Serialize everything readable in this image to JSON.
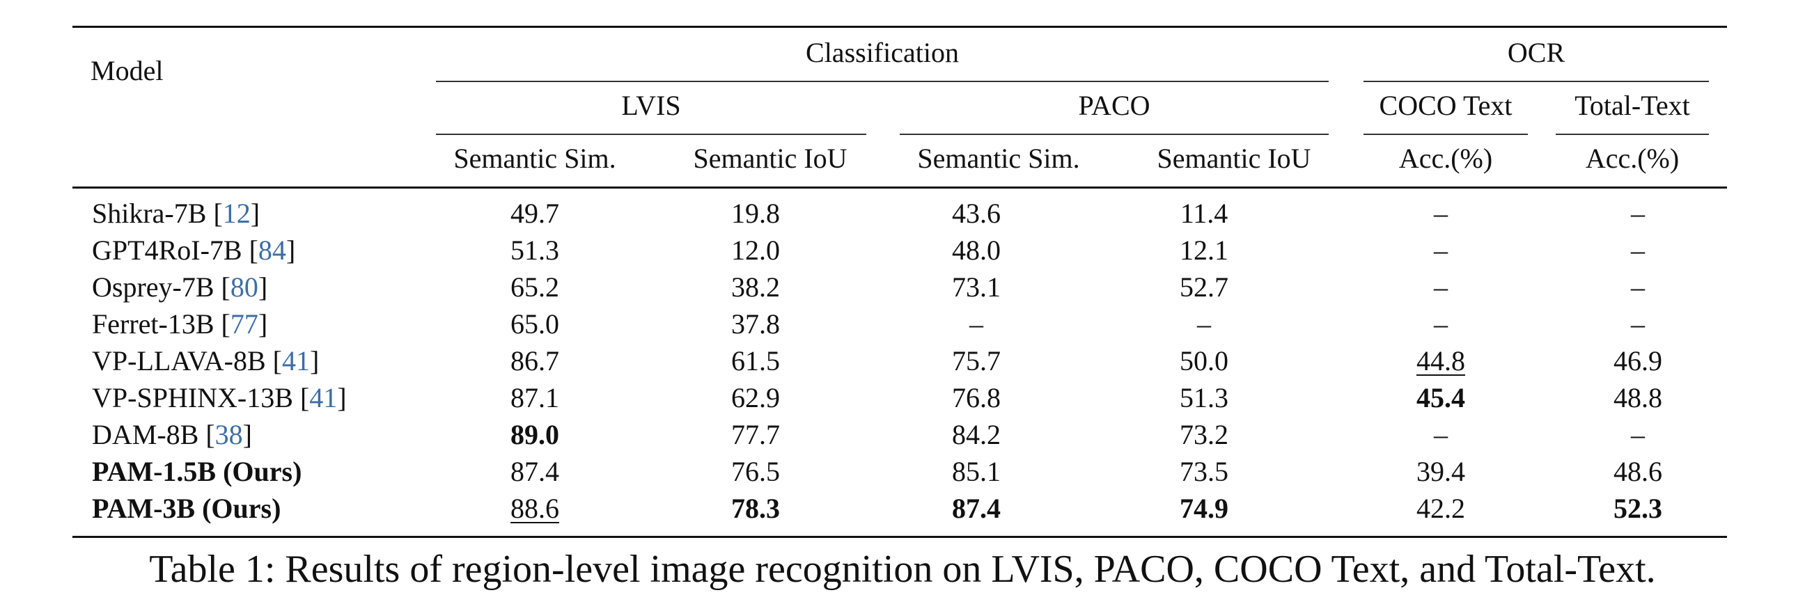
{
  "header": {
    "model": "Model",
    "classification": "Classification",
    "ocr": "OCR",
    "lvis": "LVIS",
    "paco": "PACO",
    "coco_text": "COCO Text",
    "total_text": "Total-Text",
    "sem_sim_1": "Semantic Sim.",
    "sem_iou_1": "Semantic IoU",
    "sem_sim_2": "Semantic Sim.",
    "sem_iou_2": "Semantic IoU",
    "acc_1": "Acc.(%)",
    "acc_2": "Acc.(%)"
  },
  "rows": [
    {
      "name": "Shikra-7B",
      "cite": "12",
      "vals": [
        "49.7",
        "19.8",
        "43.6",
        "11.4",
        "–",
        "–"
      ],
      "bold_name": false,
      "bold": [],
      "underline": []
    },
    {
      "name": "GPT4RoI-7B",
      "cite": "84",
      "vals": [
        "51.3",
        "12.0",
        "48.0",
        "12.1",
        "–",
        "–"
      ],
      "bold_name": false,
      "bold": [],
      "underline": []
    },
    {
      "name": "Osprey-7B",
      "cite": "80",
      "vals": [
        "65.2",
        "38.2",
        "73.1",
        "52.7",
        "–",
        "–"
      ],
      "bold_name": false,
      "bold": [],
      "underline": []
    },
    {
      "name": "Ferret-13B",
      "cite": "77",
      "vals": [
        "65.0",
        "37.8",
        "–",
        "–",
        "–",
        "–"
      ],
      "bold_name": false,
      "bold": [],
      "underline": []
    },
    {
      "name": "VP-LLAVA-8B",
      "cite": "41",
      "vals": [
        "86.7",
        "61.5",
        "75.7",
        "50.0",
        "44.8",
        "46.9"
      ],
      "bold_name": false,
      "bold": [],
      "underline": [
        4
      ]
    },
    {
      "name": "VP-SPHINX-13B",
      "cite": "41",
      "vals": [
        "87.1",
        "62.9",
        "76.8",
        "51.3",
        "45.4",
        "48.8"
      ],
      "bold_name": false,
      "bold": [
        4
      ],
      "underline": []
    },
    {
      "name": "DAM-8B",
      "cite": "38",
      "vals": [
        "89.0",
        "77.7",
        "84.2",
        "73.2",
        "–",
        "–"
      ],
      "bold_name": false,
      "bold": [
        0
      ],
      "underline": []
    },
    {
      "name": "PAM-1.5B (Ours)",
      "cite": "",
      "vals": [
        "87.4",
        "76.5",
        "85.1",
        "73.5",
        "39.4",
        "48.6"
      ],
      "bold_name": true,
      "bold": [],
      "underline": []
    },
    {
      "name": "PAM-3B (Ours)",
      "cite": "",
      "vals": [
        "88.6",
        "78.3",
        "87.4",
        "74.9",
        "42.2",
        "52.3"
      ],
      "bold_name": true,
      "bold": [
        1,
        2,
        3,
        5
      ],
      "underline": [
        0
      ]
    }
  ],
  "caption": "Table 1: Results of region-level image recognition on LVIS, PACO, COCO Text, and Total-Text."
}
